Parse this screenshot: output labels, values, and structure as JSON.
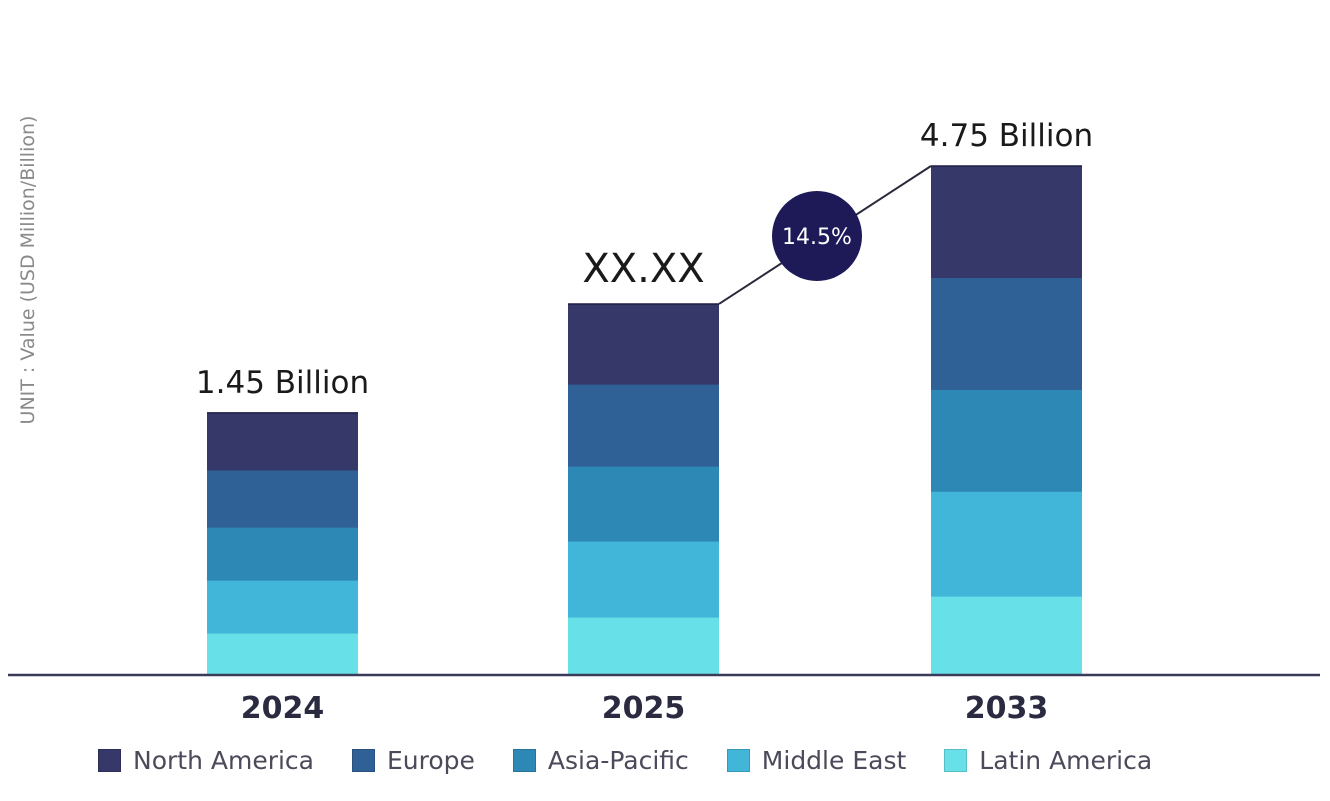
{
  "chart_data": {
    "type": "bar",
    "stacked": true,
    "title": "",
    "ylabel": "UNIT : Value (USD Million/Billion)",
    "xlabel": "",
    "categories": [
      "2024",
      "2025",
      "2033"
    ],
    "totals_display": [
      "1.45 Billion",
      "XX.XX",
      "4.75 Billion"
    ],
    "totals": [
      1.45,
      null,
      4.75
    ],
    "relative_bar_heights": [
      0.515,
      0.729,
      1.0
    ],
    "series": [
      {
        "name": "North America",
        "color": "#353868",
        "shares": [
          0.218,
          0.216,
          0.218
        ],
        "values": [
          0.32,
          null,
          1.04
        ]
      },
      {
        "name": "Europe",
        "color": "#2f6096",
        "shares": [
          0.218,
          0.221,
          0.22
        ],
        "values": [
          0.32,
          null,
          1.05
        ]
      },
      {
        "name": "Asia-Pacific",
        "color": "#2e88b6",
        "shares": [
          0.202,
          0.202,
          0.2
        ],
        "values": [
          0.29,
          null,
          0.95
        ]
      },
      {
        "name": "Middle East",
        "color": "#42b6d8",
        "shares": [
          0.202,
          0.205,
          0.206
        ],
        "values": [
          0.29,
          null,
          0.98
        ]
      },
      {
        "name": "Latin America",
        "color": "#68e0e8",
        "shares": [
          0.16,
          0.156,
          0.155
        ],
        "values": [
          0.23,
          null,
          0.73
        ]
      }
    ],
    "stack_order": "bottom-to-top: Latin America, Middle East, Asia-Pacific, Europe, North America",
    "annotation": {
      "text": "14.5%",
      "meaning": "CAGR",
      "from": "2025",
      "to": "2033",
      "color": "#1e1a58"
    },
    "grid": false,
    "legend_position": "bottom"
  },
  "legend": {
    "items": [
      {
        "label": "North America",
        "color": "#353868"
      },
      {
        "label": "Europe",
        "color": "#2f6096"
      },
      {
        "label": "Asia-Pacific",
        "color": "#2e88b6"
      },
      {
        "label": "Middle East",
        "color": "#42b6d8"
      },
      {
        "label": "Latin America",
        "color": "#68e0e8"
      }
    ]
  },
  "axis_color": "#3a3a5a"
}
